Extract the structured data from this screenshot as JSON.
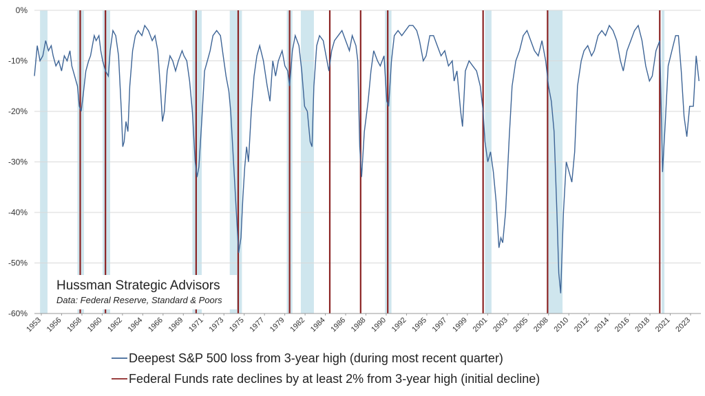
{
  "chart_data": {
    "type": "line",
    "title": "",
    "xlabel": "",
    "ylabel": "",
    "ylim": [
      -60,
      0
    ],
    "xlim": [
      1953.0,
      2024.3
    ],
    "yticks": [
      "0%",
      "-10%",
      "-20%",
      "-30%",
      "-40%",
      "-50%",
      "-60%"
    ],
    "ytick_values": [
      0,
      -10,
      -20,
      -30,
      -40,
      -50,
      -60
    ],
    "xticks": [
      "1953",
      "1956",
      "1958",
      "1960",
      "1962",
      "1964",
      "1966",
      "1969",
      "1971",
      "1973",
      "1975",
      "1977",
      "1979",
      "1982",
      "1984",
      "1986",
      "1988",
      "1990",
      "1992",
      "1995",
      "1997",
      "1999",
      "2001",
      "2003",
      "2005",
      "2008",
      "2010",
      "2012",
      "2014",
      "2016",
      "2018",
      "2021",
      "2023"
    ],
    "annotation": {
      "title": "Hussman Strategic Advisors",
      "subtitle": "Data: Federal Reserve, Standard & Poors"
    },
    "legend_position": "bottom",
    "grid": "horizontal",
    "recession_bands": [
      [
        1953.6,
        1954.4
      ],
      [
        1957.6,
        1958.3
      ],
      [
        1960.3,
        1961.1
      ],
      [
        1969.9,
        1970.9
      ],
      [
        1973.9,
        1975.2
      ],
      [
        1980.0,
        1980.6
      ],
      [
        1981.5,
        1982.9
      ],
      [
        1990.5,
        1991.2
      ],
      [
        2001.2,
        2001.9
      ],
      [
        2007.9,
        2009.5
      ],
      [
        2020.1,
        2020.4
      ]
    ],
    "series": [
      {
        "name": "Deepest S&P 500 loss from 3-year high (during most recent quarter)",
        "color": "#3d6496",
        "points": [
          [
            1953.0,
            -13
          ],
          [
            1953.3,
            -7
          ],
          [
            1953.6,
            -10
          ],
          [
            1953.9,
            -9
          ],
          [
            1954.2,
            -6
          ],
          [
            1954.5,
            -8
          ],
          [
            1954.8,
            -7
          ],
          [
            1955.0,
            -9
          ],
          [
            1955.3,
            -11
          ],
          [
            1955.6,
            -10
          ],
          [
            1955.9,
            -12
          ],
          [
            1956.2,
            -9
          ],
          [
            1956.5,
            -10
          ],
          [
            1956.8,
            -8
          ],
          [
            1957.0,
            -11
          ],
          [
            1957.3,
            -13
          ],
          [
            1957.6,
            -15
          ],
          [
            1957.8,
            -19
          ],
          [
            1958.0,
            -20
          ],
          [
            1958.2,
            -17
          ],
          [
            1958.5,
            -12
          ],
          [
            1958.8,
            -10
          ],
          [
            1959.0,
            -9
          ],
          [
            1959.2,
            -7
          ],
          [
            1959.4,
            -5
          ],
          [
            1959.6,
            -6
          ],
          [
            1959.9,
            -5
          ],
          [
            1960.1,
            -8
          ],
          [
            1960.3,
            -10
          ],
          [
            1960.6,
            -12
          ],
          [
            1960.9,
            -13
          ],
          [
            1961.1,
            -8
          ],
          [
            1961.4,
            -4
          ],
          [
            1961.7,
            -5
          ],
          [
            1962.0,
            -9
          ],
          [
            1962.3,
            -20
          ],
          [
            1962.45,
            -27
          ],
          [
            1962.6,
            -26
          ],
          [
            1962.8,
            -22
          ],
          [
            1963.0,
            -24
          ],
          [
            1963.2,
            -15
          ],
          [
            1963.5,
            -8
          ],
          [
            1963.8,
            -5
          ],
          [
            1964.1,
            -4
          ],
          [
            1964.5,
            -5
          ],
          [
            1964.8,
            -3
          ],
          [
            1965.2,
            -4
          ],
          [
            1965.6,
            -6
          ],
          [
            1965.9,
            -5
          ],
          [
            1966.2,
            -8
          ],
          [
            1966.5,
            -16
          ],
          [
            1966.7,
            -22
          ],
          [
            1966.9,
            -20
          ],
          [
            1967.2,
            -12
          ],
          [
            1967.5,
            -9
          ],
          [
            1967.8,
            -10
          ],
          [
            1968.1,
            -12
          ],
          [
            1968.4,
            -10
          ],
          [
            1968.8,
            -8
          ],
          [
            1969.0,
            -9
          ],
          [
            1969.3,
            -10
          ],
          [
            1969.6,
            -14
          ],
          [
            1969.9,
            -20
          ],
          [
            1970.2,
            -30
          ],
          [
            1970.4,
            -33
          ],
          [
            1970.6,
            -31
          ],
          [
            1970.9,
            -22
          ],
          [
            1971.2,
            -12
          ],
          [
            1971.5,
            -10
          ],
          [
            1971.8,
            -8
          ],
          [
            1972.1,
            -5
          ],
          [
            1972.5,
            -4
          ],
          [
            1972.9,
            -5
          ],
          [
            1973.2,
            -9
          ],
          [
            1973.5,
            -13
          ],
          [
            1973.8,
            -16
          ],
          [
            1974.0,
            -20
          ],
          [
            1974.3,
            -30
          ],
          [
            1974.6,
            -40
          ],
          [
            1974.85,
            -48
          ],
          [
            1975.1,
            -45
          ],
          [
            1975.3,
            -37
          ],
          [
            1975.5,
            -31
          ],
          [
            1975.7,
            -27
          ],
          [
            1975.9,
            -30
          ],
          [
            1976.2,
            -20
          ],
          [
            1976.5,
            -13
          ],
          [
            1976.8,
            -9
          ],
          [
            1977.1,
            -7
          ],
          [
            1977.5,
            -10
          ],
          [
            1977.9,
            -15
          ],
          [
            1978.2,
            -18
          ],
          [
            1978.5,
            -10
          ],
          [
            1978.8,
            -13
          ],
          [
            1979.1,
            -10
          ],
          [
            1979.5,
            -8
          ],
          [
            1979.8,
            -11
          ],
          [
            1980.1,
            -12
          ],
          [
            1980.3,
            -15
          ],
          [
            1980.6,
            -8
          ],
          [
            1980.9,
            -5
          ],
          [
            1981.3,
            -7
          ],
          [
            1981.6,
            -12
          ],
          [
            1981.9,
            -19
          ],
          [
            1982.2,
            -20
          ],
          [
            1982.5,
            -26
          ],
          [
            1982.7,
            -27
          ],
          [
            1982.9,
            -15
          ],
          [
            1983.2,
            -7
          ],
          [
            1983.5,
            -5
          ],
          [
            1983.9,
            -6
          ],
          [
            1984.2,
            -9
          ],
          [
            1984.5,
            -12
          ],
          [
            1984.8,
            -8
          ],
          [
            1985.1,
            -6
          ],
          [
            1985.5,
            -5
          ],
          [
            1985.9,
            -4
          ],
          [
            1986.3,
            -6
          ],
          [
            1986.7,
            -8
          ],
          [
            1987.0,
            -5
          ],
          [
            1987.4,
            -7
          ],
          [
            1987.6,
            -10
          ],
          [
            1987.8,
            -27
          ],
          [
            1988.0,
            -33
          ],
          [
            1988.3,
            -24
          ],
          [
            1988.7,
            -18
          ],
          [
            1989.0,
            -12
          ],
          [
            1989.3,
            -8
          ],
          [
            1989.7,
            -10
          ],
          [
            1990.0,
            -11
          ],
          [
            1990.4,
            -9
          ],
          [
            1990.7,
            -18
          ],
          [
            1990.9,
            -19
          ],
          [
            1991.2,
            -10
          ],
          [
            1991.5,
            -5
          ],
          [
            1991.9,
            -4
          ],
          [
            1992.3,
            -5
          ],
          [
            1992.7,
            -4
          ],
          [
            1993.1,
            -3
          ],
          [
            1993.5,
            -3
          ],
          [
            1993.9,
            -4
          ],
          [
            1994.2,
            -6
          ],
          [
            1994.6,
            -10
          ],
          [
            1994.9,
            -9
          ],
          [
            1995.3,
            -5
          ],
          [
            1995.7,
            -5
          ],
          [
            1996.1,
            -7
          ],
          [
            1996.5,
            -9
          ],
          [
            1996.9,
            -8
          ],
          [
            1997.3,
            -11
          ],
          [
            1997.7,
            -10
          ],
          [
            1997.9,
            -14
          ],
          [
            1998.2,
            -12
          ],
          [
            1998.6,
            -20
          ],
          [
            1998.8,
            -23
          ],
          [
            1999.1,
            -12
          ],
          [
            1999.5,
            -10
          ],
          [
            1999.9,
            -11
          ],
          [
            2000.3,
            -12
          ],
          [
            2000.7,
            -15
          ],
          [
            2001.0,
            -20
          ],
          [
            2001.2,
            -26
          ],
          [
            2001.5,
            -30
          ],
          [
            2001.8,
            -28
          ],
          [
            2002.1,
            -32
          ],
          [
            2002.4,
            -38
          ],
          [
            2002.7,
            -47
          ],
          [
            2002.9,
            -45
          ],
          [
            2003.1,
            -46
          ],
          [
            2003.4,
            -40
          ],
          [
            2003.8,
            -25
          ],
          [
            2004.1,
            -15
          ],
          [
            2004.5,
            -10
          ],
          [
            2004.9,
            -8
          ],
          [
            2005.3,
            -5
          ],
          [
            2005.7,
            -4
          ],
          [
            2006.1,
            -6
          ],
          [
            2006.5,
            -8
          ],
          [
            2006.9,
            -9
          ],
          [
            2007.3,
            -6
          ],
          [
            2007.7,
            -10
          ],
          [
            2008.0,
            -15
          ],
          [
            2008.3,
            -18
          ],
          [
            2008.6,
            -24
          ],
          [
            2008.9,
            -40
          ],
          [
            2009.1,
            -52
          ],
          [
            2009.3,
            -56
          ],
          [
            2009.6,
            -40
          ],
          [
            2009.9,
            -30
          ],
          [
            2010.2,
            -32
          ],
          [
            2010.5,
            -34
          ],
          [
            2010.8,
            -28
          ],
          [
            2011.1,
            -15
          ],
          [
            2011.5,
            -10
          ],
          [
            2011.8,
            -8
          ],
          [
            2012.2,
            -7
          ],
          [
            2012.6,
            -9
          ],
          [
            2012.9,
            -8
          ],
          [
            2013.3,
            -5
          ],
          [
            2013.7,
            -4
          ],
          [
            2014.1,
            -5
          ],
          [
            2014.5,
            -3
          ],
          [
            2014.9,
            -4
          ],
          [
            2015.3,
            -6
          ],
          [
            2015.7,
            -10
          ],
          [
            2016.0,
            -12
          ],
          [
            2016.4,
            -8
          ],
          [
            2016.8,
            -6
          ],
          [
            2017.2,
            -4
          ],
          [
            2017.6,
            -3
          ],
          [
            2018.0,
            -6
          ],
          [
            2018.4,
            -11
          ],
          [
            2018.8,
            -14
          ],
          [
            2019.1,
            -13
          ],
          [
            2019.5,
            -8
          ],
          [
            2019.9,
            -6
          ],
          [
            2020.2,
            -32
          ],
          [
            2020.5,
            -22
          ],
          [
            2020.8,
            -11
          ],
          [
            2021.2,
            -8
          ],
          [
            2021.6,
            -5
          ],
          [
            2021.9,
            -5
          ],
          [
            2022.2,
            -12
          ],
          [
            2022.5,
            -21
          ],
          [
            2022.8,
            -25
          ],
          [
            2023.1,
            -19
          ],
          [
            2023.5,
            -19
          ],
          [
            2023.8,
            -9
          ],
          [
            2024.1,
            -14
          ]
        ]
      },
      {
        "name": "Federal Funds rate declines by at least 2% from 3-year high (initial decline)",
        "color": "#8b2323",
        "dates": [
          1957.9,
          1960.6,
          1970.3,
          1974.8,
          1980.3,
          1984.6,
          1987.9,
          1990.8,
          2001.0,
          2007.9,
          2019.9
        ]
      }
    ]
  }
}
